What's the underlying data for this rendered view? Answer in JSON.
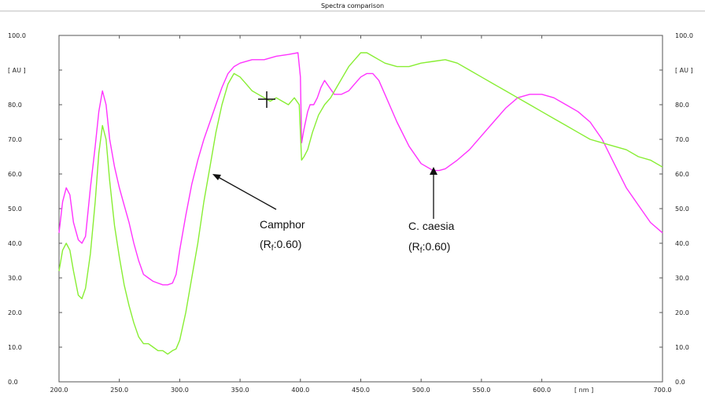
{
  "chart_data": {
    "type": "line",
    "title": "Spectra comparison",
    "ylabel": "[ AU ]",
    "xunit": "[ nm ]",
    "xlim": [
      200,
      700
    ],
    "ylim": [
      0,
      100
    ],
    "x_ticks": [
      "200.0",
      "250.0",
      "300.0",
      "350.0",
      "400.0",
      "450.0",
      "500.0",
      "550.0",
      "600.0",
      "700.0"
    ],
    "y_ticks": [
      "0.0",
      "10.0",
      "20.0",
      "30.0",
      "40.0",
      "50.0",
      "60.0",
      "70.0",
      "80.0",
      "90.0",
      "100.0"
    ],
    "grid": false,
    "series": [
      {
        "color": "#ff33ff",
        "points": [
          [
            200,
            43
          ],
          [
            203,
            52
          ],
          [
            206,
            56
          ],
          [
            209,
            54
          ],
          [
            212,
            46
          ],
          [
            216,
            41
          ],
          [
            219,
            40
          ],
          [
            222,
            42
          ],
          [
            226,
            56
          ],
          [
            230,
            68
          ],
          [
            233,
            78
          ],
          [
            236,
            84
          ],
          [
            239,
            80
          ],
          [
            242,
            70
          ],
          [
            246,
            62
          ],
          [
            250,
            56
          ],
          [
            254,
            51
          ],
          [
            258,
            46
          ],
          [
            262,
            40
          ],
          [
            266,
            35
          ],
          [
            270,
            31
          ],
          [
            274,
            30
          ],
          [
            278,
            29
          ],
          [
            282,
            28.5
          ],
          [
            286,
            28
          ],
          [
            290,
            28
          ],
          [
            294,
            28.5
          ],
          [
            297,
            31
          ],
          [
            300,
            38
          ],
          [
            305,
            48
          ],
          [
            310,
            57
          ],
          [
            315,
            64
          ],
          [
            320,
            70
          ],
          [
            325,
            75
          ],
          [
            330,
            80
          ],
          [
            335,
            85
          ],
          [
            340,
            89
          ],
          [
            345,
            91
          ],
          [
            350,
            92
          ],
          [
            360,
            93
          ],
          [
            370,
            93
          ],
          [
            380,
            94
          ],
          [
            390,
            94.5
          ],
          [
            398,
            95
          ],
          [
            400,
            88
          ],
          [
            401,
            69
          ],
          [
            403,
            73
          ],
          [
            406,
            78
          ],
          [
            408,
            80
          ],
          [
            411,
            80
          ],
          [
            414,
            82
          ],
          [
            417,
            85
          ],
          [
            420,
            87
          ],
          [
            424,
            85
          ],
          [
            428,
            83
          ],
          [
            434,
            83
          ],
          [
            440,
            84
          ],
          [
            445,
            86
          ],
          [
            450,
            88
          ],
          [
            455,
            89
          ],
          [
            460,
            89
          ],
          [
            465,
            87
          ],
          [
            470,
            83
          ],
          [
            480,
            75
          ],
          [
            490,
            68
          ],
          [
            500,
            63
          ],
          [
            510,
            61
          ],
          [
            515,
            61
          ],
          [
            520,
            61.5
          ],
          [
            530,
            64
          ],
          [
            540,
            67
          ],
          [
            550,
            71
          ],
          [
            560,
            75
          ],
          [
            570,
            79
          ],
          [
            580,
            82
          ],
          [
            590,
            83
          ],
          [
            600,
            83
          ],
          [
            610,
            82
          ],
          [
            620,
            80
          ],
          [
            630,
            78
          ],
          [
            640,
            75
          ],
          [
            650,
            70
          ],
          [
            660,
            63
          ],
          [
            670,
            56
          ],
          [
            680,
            51
          ],
          [
            690,
            46
          ],
          [
            700,
            43
          ]
        ]
      },
      {
        "color": "#88ee33",
        "points": [
          [
            200,
            32
          ],
          [
            203,
            38
          ],
          [
            206,
            40
          ],
          [
            209,
            38
          ],
          [
            212,
            32
          ],
          [
            216,
            25
          ],
          [
            219,
            24
          ],
          [
            222,
            27
          ],
          [
            226,
            37
          ],
          [
            230,
            52
          ],
          [
            233,
            66
          ],
          [
            236,
            74
          ],
          [
            239,
            70
          ],
          [
            242,
            58
          ],
          [
            246,
            45
          ],
          [
            250,
            36
          ],
          [
            254,
            28
          ],
          [
            258,
            22
          ],
          [
            262,
            17
          ],
          [
            266,
            13
          ],
          [
            270,
            11
          ],
          [
            274,
            11
          ],
          [
            278,
            10
          ],
          [
            282,
            9
          ],
          [
            286,
            9
          ],
          [
            290,
            8
          ],
          [
            294,
            9
          ],
          [
            297,
            9.5
          ],
          [
            300,
            12
          ],
          [
            305,
            20
          ],
          [
            310,
            30
          ],
          [
            315,
            40
          ],
          [
            320,
            52
          ],
          [
            325,
            62
          ],
          [
            330,
            72
          ],
          [
            335,
            80
          ],
          [
            340,
            86
          ],
          [
            345,
            89
          ],
          [
            350,
            88
          ],
          [
            355,
            86
          ],
          [
            360,
            84
          ],
          [
            365,
            83
          ],
          [
            370,
            82
          ],
          [
            375,
            81
          ],
          [
            380,
            82
          ],
          [
            385,
            81
          ],
          [
            390,
            80
          ],
          [
            395,
            82
          ],
          [
            399,
            80
          ],
          [
            401,
            64
          ],
          [
            403,
            65
          ],
          [
            406,
            67
          ],
          [
            410,
            72
          ],
          [
            415,
            77
          ],
          [
            420,
            80
          ],
          [
            425,
            82
          ],
          [
            430,
            85
          ],
          [
            435,
            88
          ],
          [
            440,
            91
          ],
          [
            445,
            93
          ],
          [
            450,
            95
          ],
          [
            455,
            95
          ],
          [
            460,
            94
          ],
          [
            465,
            93
          ],
          [
            470,
            92
          ],
          [
            480,
            91
          ],
          [
            490,
            91
          ],
          [
            500,
            92
          ],
          [
            510,
            92.5
          ],
          [
            520,
            93
          ],
          [
            530,
            92
          ],
          [
            540,
            90
          ],
          [
            550,
            88
          ],
          [
            560,
            86
          ],
          [
            570,
            84
          ],
          [
            580,
            82
          ],
          [
            590,
            80
          ],
          [
            600,
            78
          ],
          [
            610,
            76
          ],
          [
            620,
            74
          ],
          [
            630,
            72
          ],
          [
            640,
            70
          ],
          [
            650,
            69
          ],
          [
            660,
            68
          ],
          [
            670,
            67
          ],
          [
            680,
            65
          ],
          [
            690,
            64
          ],
          [
            700,
            62
          ]
        ]
      }
    ],
    "annotations": [
      {
        "line1": "Camphor",
        "line2_prefix": "(R",
        "subscript": "f",
        "line2_suffix": ":0.60)"
      },
      {
        "line1": "C. caesia",
        "line2_prefix": "(R",
        "subscript": "f",
        "line2_suffix": ":0.60)"
      }
    ],
    "cursor_marker": "cross-cursor"
  }
}
